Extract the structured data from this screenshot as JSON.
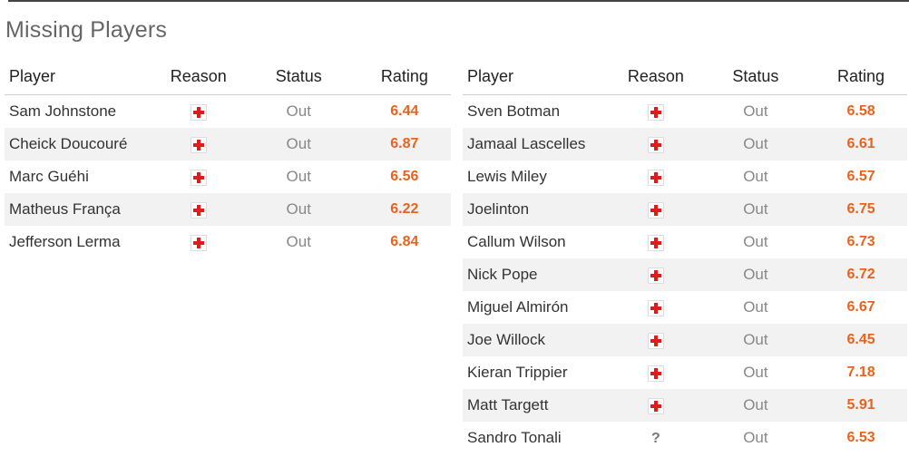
{
  "title": "Missing Players",
  "columns": {
    "player": "Player",
    "reason": "Reason",
    "status": "Status",
    "rating": "Rating"
  },
  "colors": {
    "rating": "#e8641e",
    "injury_cross": "#e01b1b",
    "stripe": "#f2f2f2",
    "title": "#666666"
  },
  "left_team": {
    "players": [
      {
        "name": "Sam Johnstone",
        "reason_icon": "injury-cross-icon",
        "reason": "+",
        "status": "Out",
        "rating": "6.44"
      },
      {
        "name": "Cheick Doucouré",
        "reason_icon": "injury-cross-icon",
        "reason": "+",
        "status": "Out",
        "rating": "6.87"
      },
      {
        "name": "Marc Guéhi",
        "reason_icon": "injury-cross-icon",
        "reason": "+",
        "status": "Out",
        "rating": "6.56"
      },
      {
        "name": "Matheus França",
        "reason_icon": "injury-cross-icon",
        "reason": "+",
        "status": "Out",
        "rating": "6.22"
      },
      {
        "name": "Jefferson Lerma",
        "reason_icon": "injury-cross-icon",
        "reason": "+",
        "status": "Out",
        "rating": "6.84"
      }
    ]
  },
  "right_team": {
    "players": [
      {
        "name": "Sven Botman",
        "reason_icon": "injury-cross-icon",
        "reason": "+",
        "status": "Out",
        "rating": "6.58"
      },
      {
        "name": "Jamaal Lascelles",
        "reason_icon": "injury-cross-icon",
        "reason": "+",
        "status": "Out",
        "rating": "6.61"
      },
      {
        "name": "Lewis Miley",
        "reason_icon": "injury-cross-icon",
        "reason": "+",
        "status": "Out",
        "rating": "6.57"
      },
      {
        "name": "Joelinton",
        "reason_icon": "injury-cross-icon",
        "reason": "+",
        "status": "Out",
        "rating": "6.75"
      },
      {
        "name": "Callum Wilson",
        "reason_icon": "injury-cross-icon",
        "reason": "+",
        "status": "Out",
        "rating": "6.73"
      },
      {
        "name": "Nick Pope",
        "reason_icon": "injury-cross-icon",
        "reason": "+",
        "status": "Out",
        "rating": "6.72"
      },
      {
        "name": "Miguel Almirón",
        "reason_icon": "injury-cross-icon",
        "reason": "+",
        "status": "Out",
        "rating": "6.67"
      },
      {
        "name": "Joe Willock",
        "reason_icon": "injury-cross-icon",
        "reason": "+",
        "status": "Out",
        "rating": "6.45"
      },
      {
        "name": "Kieran Trippier",
        "reason_icon": "injury-cross-icon",
        "reason": "+",
        "status": "Out",
        "rating": "7.18"
      },
      {
        "name": "Matt Targett",
        "reason_icon": "injury-cross-icon",
        "reason": "+",
        "status": "Out",
        "rating": "5.91"
      },
      {
        "name": "Sandro Tonali",
        "reason_icon": "unknown-question-icon",
        "reason": "?",
        "status": "Out",
        "rating": "6.53"
      }
    ]
  }
}
